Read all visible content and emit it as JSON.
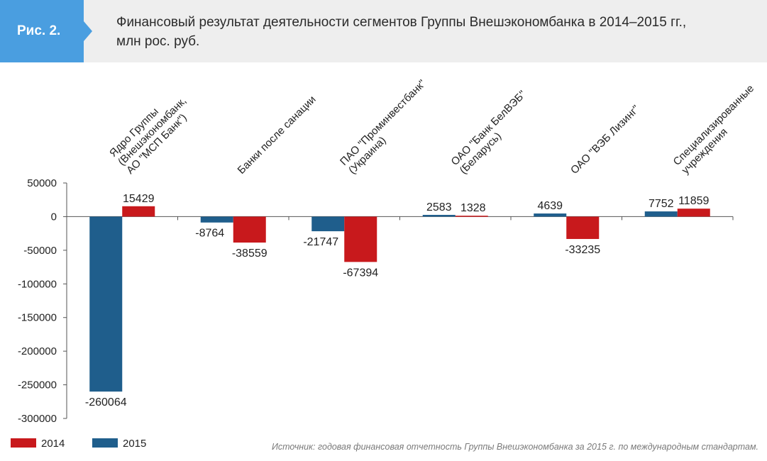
{
  "figure": {
    "label": "Рис. 2.",
    "title_line1": "Финансовый результат деятельности сегментов Группы Внешэкономбанка в 2014–2015 гг.,",
    "title_line2": "млн рос. руб.",
    "source": "Источник: годовая финансовая отчетность Группы Внешэкономбанка за 2015 г. по международным стандартам."
  },
  "colors": {
    "series_2014": "#c8191c",
    "series_2015": "#1f5e8c",
    "badge": "#4a9ee0",
    "header_bg": "#eeeeee"
  },
  "chart_data": {
    "type": "bar",
    "title": "Финансовый результат деятельности сегментов Группы Внешэкономбанка в 2014–2015 гг., млн рос. руб.",
    "xlabel": "",
    "ylabel": "",
    "ylim": [
      -300000,
      50000
    ],
    "yticks": [
      50000,
      0,
      -50000,
      -100000,
      -150000,
      -200000,
      -250000,
      -300000
    ],
    "categories": [
      [
        "Ядро Группы",
        "(Внешэкономбанк,",
        "АО \"МСП Банк\")"
      ],
      [
        "Банки после санации"
      ],
      [
        "ПАО \"Проминвестбанк\"",
        "(Украина)"
      ],
      [
        "ОАО \"Банк БелВЭБ\"",
        "(Беларусь)"
      ],
      [
        "ОАО \"ВЭБ Лизинг\""
      ],
      [
        "Специализированные",
        "учреждения"
      ]
    ],
    "series": [
      {
        "name": "2015",
        "values": [
          -260064,
          -8764,
          -21747,
          2583,
          4639,
          7752
        ]
      },
      {
        "name": "2014",
        "values": [
          15429,
          -38559,
          -67394,
          1328,
          -33235,
          11859
        ]
      }
    ],
    "legend": [
      "2014",
      "2015"
    ],
    "legend_position": "bottom-left"
  }
}
